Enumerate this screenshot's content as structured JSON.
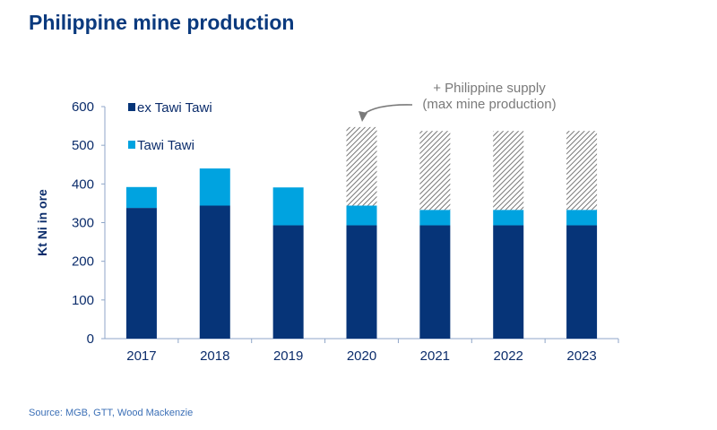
{
  "title": "Philippine mine production",
  "source": "Source: MGB, GTT, Wood Mackenzie",
  "chart_data": {
    "type": "bar",
    "stacked": true,
    "title": "Philippine mine production",
    "ylabel": "Kt Ni in ore",
    "xlabel": "",
    "ylim": [
      0,
      600
    ],
    "yticks": [
      0,
      100,
      200,
      300,
      400,
      500,
      600
    ],
    "grid": false,
    "legend_position": "top-left",
    "categories": [
      "2017",
      "2018",
      "2019",
      "2020",
      "2021",
      "2022",
      "2023"
    ],
    "series": [
      {
        "name": "ex Tawi Tawi",
        "color": "#063478",
        "values": [
          338,
          344,
          293,
          293,
          293,
          293,
          293
        ]
      },
      {
        "name": "Tawi Tawi",
        "color": "#00a3e0",
        "values": [
          54,
          96,
          98,
          51,
          40,
          40,
          40
        ]
      },
      {
        "name": "",
        "color": "#8c8c8c",
        "pattern": "hatched",
        "values": [
          0,
          0,
          0,
          203,
          204,
          204,
          204
        ]
      }
    ],
    "annotation": {
      "line1": "+ Philippine supply",
      "line2": "(max mine production)",
      "points_to": "2020"
    }
  }
}
